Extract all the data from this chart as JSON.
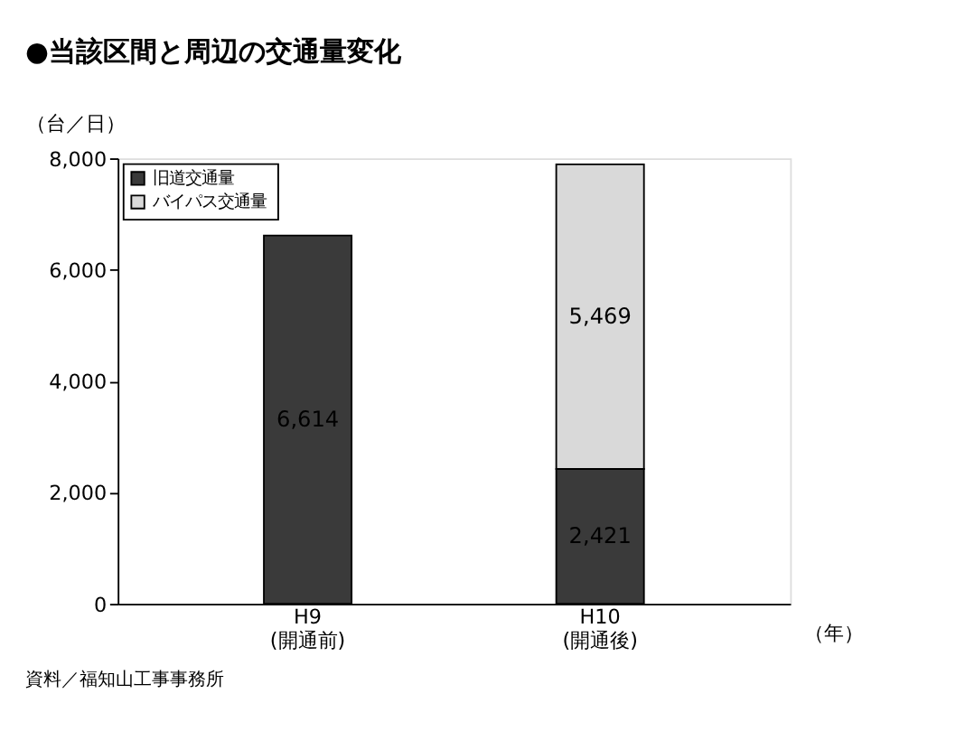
{
  "chart_data": {
    "type": "bar",
    "title": "●当該区間と周辺の交通量変化",
    "categories": [
      "H9\n(開通前)",
      "H10\n(開通後)"
    ],
    "series": [
      {
        "name": "旧道交通量",
        "color": "#3a3a3a",
        "values": [
          6614,
          2421
        ],
        "value_labels": [
          "6,614",
          "2,421"
        ]
      },
      {
        "name": "バイパス交通量",
        "color": "#d9d9d9",
        "values": [
          null,
          5469
        ],
        "value_labels": [
          null,
          "5,469"
        ]
      }
    ],
    "stacked": true,
    "ylim": [
      0,
      8000
    ],
    "yticks": [
      0,
      {
        "value": 2000,
        "label": "2,000"
      },
      {
        "value": 4000,
        "label": "4,000"
      },
      {
        "value": 6000,
        "label": "6,000"
      },
      {
        "value": 8000,
        "label": "8,000"
      }
    ],
    "ylabel": "（台／日）",
    "xlabel": "（年）",
    "legend": "top left",
    "grid": false,
    "annotations": [
      "資料／福知山工事事務所"
    ]
  }
}
